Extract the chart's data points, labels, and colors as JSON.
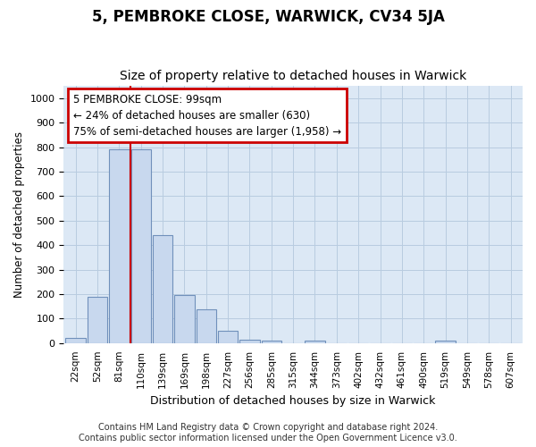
{
  "title": "5, PEMBROKE CLOSE, WARWICK, CV34 5JA",
  "subtitle": "Size of property relative to detached houses in Warwick",
  "xlabel": "Distribution of detached houses by size in Warwick",
  "ylabel": "Number of detached properties",
  "categories": [
    "22sqm",
    "52sqm",
    "81sqm",
    "110sqm",
    "139sqm",
    "169sqm",
    "198sqm",
    "227sqm",
    "256sqm",
    "285sqm",
    "315sqm",
    "344sqm",
    "373sqm",
    "402sqm",
    "432sqm",
    "461sqm",
    "490sqm",
    "519sqm",
    "549sqm",
    "578sqm",
    "607sqm"
  ],
  "values": [
    20,
    190,
    790,
    790,
    440,
    195,
    140,
    50,
    15,
    10,
    0,
    10,
    0,
    0,
    0,
    0,
    0,
    10,
    0,
    0,
    0
  ],
  "bar_color": "#c8d8ee",
  "bar_edge_color": "#7090bb",
  "vline_color": "#cc0000",
  "annotation_text": "5 PEMBROKE CLOSE: 99sqm\n← 24% of detached houses are smaller (630)\n75% of semi-detached houses are larger (1,958) →",
  "annotation_box_color": "#ffffff",
  "annotation_box_edge_color": "#cc0000",
  "ylim": [
    0,
    1050
  ],
  "yticks": [
    0,
    100,
    200,
    300,
    400,
    500,
    600,
    700,
    800,
    900,
    1000
  ],
  "footnote": "Contains HM Land Registry data © Crown copyright and database right 2024.\nContains public sector information licensed under the Open Government Licence v3.0.",
  "bg_color": "#ffffff",
  "plot_bg_color": "#dce8f5",
  "grid_color": "#b8cce0"
}
